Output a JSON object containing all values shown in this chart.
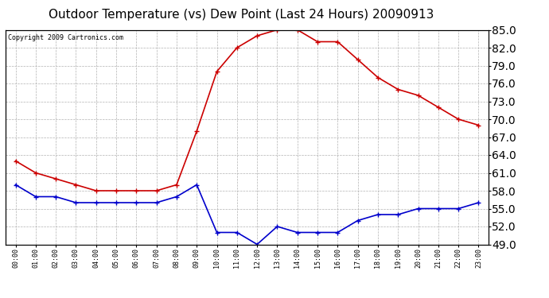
{
  "title": "Outdoor Temperature (vs) Dew Point (Last 24 Hours) 20090913",
  "copyright": "Copyright 2009 Cartronics.com",
  "hours": [
    "00:00",
    "01:00",
    "02:00",
    "03:00",
    "04:00",
    "05:00",
    "06:00",
    "07:00",
    "08:00",
    "09:00",
    "10:00",
    "11:00",
    "12:00",
    "13:00",
    "14:00",
    "15:00",
    "16:00",
    "17:00",
    "18:00",
    "19:00",
    "20:00",
    "21:00",
    "22:00",
    "23:00"
  ],
  "temp": [
    63,
    61,
    60,
    59,
    58,
    58,
    58,
    58,
    59,
    68,
    78,
    82,
    84,
    85,
    85,
    83,
    83,
    80,
    77,
    75,
    74,
    72,
    70,
    69
  ],
  "dew": [
    59,
    57,
    57,
    56,
    56,
    56,
    56,
    56,
    57,
    59,
    51,
    51,
    49,
    52,
    51,
    51,
    51,
    53,
    54,
    54,
    55,
    55,
    55,
    56
  ],
  "temp_color": "#cc0000",
  "dew_color": "#0000cc",
  "background_color": "#ffffff",
  "plot_bg_color": "#ffffff",
  "grid_color": "#aaaaaa",
  "ylim": [
    49,
    85
  ],
  "yticks": [
    49.0,
    52.0,
    55.0,
    58.0,
    61.0,
    64.0,
    67.0,
    70.0,
    73.0,
    76.0,
    79.0,
    82.0,
    85.0
  ],
  "title_fontsize": 11,
  "copyright_fontsize": 6,
  "marker": "+",
  "marker_size": 4,
  "line_width": 1.2
}
